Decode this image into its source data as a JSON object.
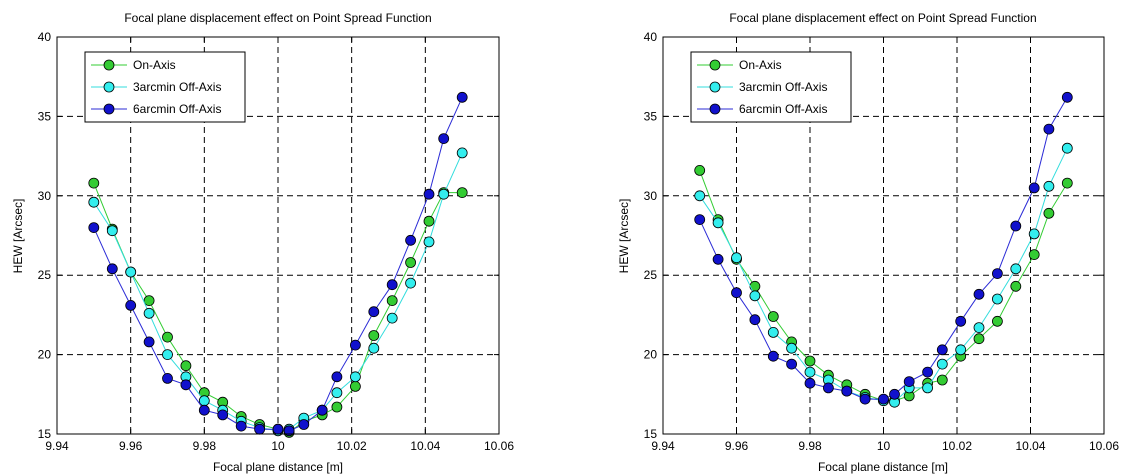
{
  "chart_data": [
    {
      "type": "line",
      "title": "Focal plane displacement effect on Point Spread Function",
      "xlabel": "Focal plane distance [m]",
      "ylabel": "HEW [Arcsec]",
      "xlim": [
        9.94,
        10.06
      ],
      "ylim": [
        15,
        40
      ],
      "xticks": [
        "9.94",
        "9.96",
        "9.98",
        "10",
        "10.02",
        "10.04",
        "10.06"
      ],
      "yticks": [
        "15",
        "20",
        "25",
        "30",
        "35",
        "40"
      ],
      "grid": true,
      "legend_position": "top-left",
      "series": [
        {
          "name": "On-Axis",
          "line_color": "#33cc33",
          "marker_color": "#33cc33",
          "points": [
            [
              9.95,
              30.8
            ],
            [
              9.955,
              27.9
            ],
            [
              9.96,
              25.2
            ],
            [
              9.965,
              23.4
            ],
            [
              9.97,
              21.1
            ],
            [
              9.975,
              19.3
            ],
            [
              9.98,
              17.6
            ],
            [
              9.985,
              17.0
            ],
            [
              9.99,
              16.1
            ],
            [
              9.995,
              15.6
            ],
            [
              10.0,
              15.3
            ],
            [
              10.003,
              15.1
            ],
            [
              10.007,
              15.8
            ],
            [
              10.012,
              16.2
            ],
            [
              10.016,
              16.7
            ],
            [
              10.021,
              18.0
            ],
            [
              10.026,
              21.2
            ],
            [
              10.031,
              23.4
            ],
            [
              10.036,
              25.8
            ],
            [
              10.041,
              28.4
            ],
            [
              10.045,
              30.2
            ],
            [
              10.05,
              30.2
            ]
          ]
        },
        {
          "name": "3arcmin Off-Axis",
          "line_color": "#33dddd",
          "marker_color": "#33eeee",
          "points": [
            [
              9.95,
              29.6
            ],
            [
              9.955,
              27.8
            ],
            [
              9.96,
              25.2
            ],
            [
              9.965,
              22.6
            ],
            [
              9.97,
              20.0
            ],
            [
              9.975,
              18.6
            ],
            [
              9.98,
              17.1
            ],
            [
              9.985,
              16.5
            ],
            [
              9.99,
              15.8
            ],
            [
              9.995,
              15.4
            ],
            [
              10.0,
              15.2
            ],
            [
              10.003,
              15.3
            ],
            [
              10.007,
              16.0
            ],
            [
              10.012,
              16.5
            ],
            [
              10.016,
              17.6
            ],
            [
              10.021,
              18.6
            ],
            [
              10.026,
              20.4
            ],
            [
              10.031,
              22.3
            ],
            [
              10.036,
              24.5
            ],
            [
              10.041,
              27.1
            ],
            [
              10.045,
              30.1
            ],
            [
              10.05,
              32.7
            ]
          ]
        },
        {
          "name": "6arcmin Off-Axis",
          "line_color": "#2b2bd6",
          "marker_color": "#1111cc",
          "points": [
            [
              9.95,
              28.0
            ],
            [
              9.955,
              25.4
            ],
            [
              9.96,
              23.1
            ],
            [
              9.965,
              20.8
            ],
            [
              9.97,
              18.5
            ],
            [
              9.975,
              18.1
            ],
            [
              9.98,
              16.5
            ],
            [
              9.985,
              16.2
            ],
            [
              9.99,
              15.5
            ],
            [
              9.995,
              15.3
            ],
            [
              10.0,
              15.3
            ],
            [
              10.003,
              15.2
            ],
            [
              10.007,
              15.6
            ],
            [
              10.012,
              16.5
            ],
            [
              10.016,
              18.6
            ],
            [
              10.021,
              20.6
            ],
            [
              10.026,
              22.7
            ],
            [
              10.031,
              24.4
            ],
            [
              10.036,
              27.2
            ],
            [
              10.041,
              30.1
            ],
            [
              10.045,
              33.6
            ],
            [
              10.05,
              36.2
            ]
          ]
        }
      ]
    },
    {
      "type": "line",
      "title": "Focal plane displacement effect on Point Spread Function",
      "xlabel": "Focal plane distance [m]",
      "ylabel": "HEW [Arcsec]",
      "xlim": [
        9.94,
        10.06
      ],
      "ylim": [
        15,
        40
      ],
      "xticks": [
        "9.94",
        "9.96",
        "9.98",
        "10",
        "10.02",
        "10.04",
        "10.06"
      ],
      "yticks": [
        "15",
        "20",
        "25",
        "30",
        "35",
        "40"
      ],
      "grid": true,
      "legend_position": "top-left",
      "series": [
        {
          "name": "On-Axis",
          "line_color": "#33cc33",
          "marker_color": "#33cc33",
          "points": [
            [
              9.95,
              31.6
            ],
            [
              9.955,
              28.5
            ],
            [
              9.96,
              26.0
            ],
            [
              9.965,
              24.3
            ],
            [
              9.97,
              22.4
            ],
            [
              9.975,
              20.8
            ],
            [
              9.98,
              19.6
            ],
            [
              9.985,
              18.7
            ],
            [
              9.99,
              18.1
            ],
            [
              9.995,
              17.5
            ],
            [
              10.0,
              17.1
            ],
            [
              10.003,
              17.1
            ],
            [
              10.007,
              17.4
            ],
            [
              10.012,
              18.2
            ],
            [
              10.016,
              18.4
            ],
            [
              10.021,
              19.9
            ],
            [
              10.026,
              21.0
            ],
            [
              10.031,
              22.1
            ],
            [
              10.036,
              24.3
            ],
            [
              10.041,
              26.3
            ],
            [
              10.045,
              28.9
            ],
            [
              10.05,
              30.8
            ]
          ]
        },
        {
          "name": "3arcmin Off-Axis",
          "line_color": "#33dddd",
          "marker_color": "#33eeee",
          "points": [
            [
              9.95,
              30.0
            ],
            [
              9.955,
              28.3
            ],
            [
              9.96,
              26.1
            ],
            [
              9.965,
              23.7
            ],
            [
              9.97,
              21.4
            ],
            [
              9.975,
              20.4
            ],
            [
              9.98,
              18.9
            ],
            [
              9.985,
              18.4
            ],
            [
              9.99,
              17.7
            ],
            [
              9.995,
              17.3
            ],
            [
              10.0,
              17.1
            ],
            [
              10.003,
              17.0
            ],
            [
              10.007,
              17.9
            ],
            [
              10.012,
              17.9
            ],
            [
              10.016,
              19.4
            ],
            [
              10.021,
              20.3
            ],
            [
              10.026,
              21.7
            ],
            [
              10.031,
              23.5
            ],
            [
              10.036,
              25.4
            ],
            [
              10.041,
              27.6
            ],
            [
              10.045,
              30.6
            ],
            [
              10.05,
              33.0
            ]
          ]
        },
        {
          "name": "6arcmin Off-Axis",
          "line_color": "#2b2bd6",
          "marker_color": "#1111cc",
          "points": [
            [
              9.95,
              28.5
            ],
            [
              9.955,
              26.0
            ],
            [
              9.96,
              23.9
            ],
            [
              9.965,
              22.2
            ],
            [
              9.97,
              19.9
            ],
            [
              9.975,
              19.4
            ],
            [
              9.98,
              18.2
            ],
            [
              9.985,
              17.9
            ],
            [
              9.99,
              17.7
            ],
            [
              9.995,
              17.2
            ],
            [
              10.0,
              17.2
            ],
            [
              10.003,
              17.5
            ],
            [
              10.007,
              18.3
            ],
            [
              10.012,
              18.9
            ],
            [
              10.016,
              20.3
            ],
            [
              10.021,
              22.1
            ],
            [
              10.026,
              23.8
            ],
            [
              10.031,
              25.1
            ],
            [
              10.036,
              28.1
            ],
            [
              10.041,
              30.5
            ],
            [
              10.045,
              34.2
            ],
            [
              10.05,
              36.2
            ]
          ]
        }
      ]
    }
  ]
}
